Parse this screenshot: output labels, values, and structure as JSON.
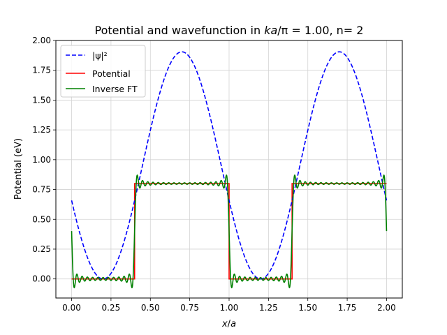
{
  "chart_data": {
    "type": "line",
    "title": {
      "prefix": "Potential and wavefunction in ",
      "math_var": "ka",
      "math_rest": "/π = 1.00, n= 2"
    },
    "xlabel": {
      "var1": "x",
      "sep": "/",
      "var2": "a"
    },
    "ylabel": "Potential (eV)",
    "xlim": [
      -0.1,
      2.1
    ],
    "ylim": [
      -0.16,
      2.0
    ],
    "x_ticks": [
      0.0,
      0.25,
      0.5,
      0.75,
      1.0,
      1.25,
      1.5,
      1.75,
      2.0
    ],
    "x_tick_labels": [
      "0.00",
      "0.25",
      "0.50",
      "0.75",
      "1.00",
      "1.25",
      "1.50",
      "1.75",
      "2.00"
    ],
    "y_ticks": [
      0.0,
      0.25,
      0.5,
      0.75,
      1.0,
      1.25,
      1.5,
      1.75,
      2.0
    ],
    "y_tick_labels": [
      "0.00",
      "0.25",
      "0.50",
      "0.75",
      "1.00",
      "1.25",
      "1.50",
      "1.75",
      "2.00"
    ],
    "grid": true,
    "legend_position": "top-left",
    "series": [
      {
        "name": "|ψ|²",
        "color": "#0000ff",
        "style": "dashed",
        "model": "squared_cosine",
        "period": 1.0,
        "minimum": 0.0,
        "maximum": 1.905,
        "minimum_x": 0.2,
        "x_range": [
          0.0,
          2.0
        ]
      },
      {
        "name": "Potential",
        "color": "#ff0000",
        "style": "solid",
        "model": "square_wave",
        "low": 0.0,
        "high": 0.8,
        "high_intervals": [
          [
            0.4,
            1.0
          ],
          [
            1.4,
            2.0
          ]
        ],
        "x_range": [
          0.0,
          2.0
        ]
      },
      {
        "name": "Inverse FT",
        "color": "#008000",
        "style": "solid",
        "model": "fourier_series_of_square_wave",
        "low": 0.0,
        "high": 0.8,
        "high_intervals": [
          [
            0.4,
            1.0
          ],
          [
            1.4,
            2.0
          ]
        ],
        "harmonics": 30,
        "x_range": [
          0.0,
          2.0
        ]
      }
    ]
  }
}
